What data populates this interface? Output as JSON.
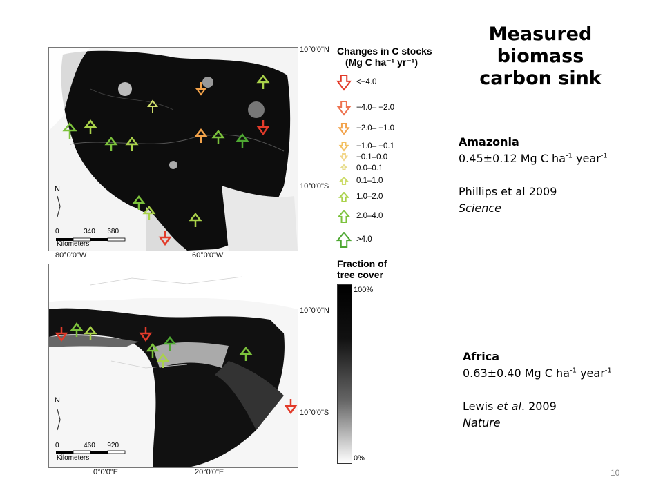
{
  "title": {
    "line1": "Measured",
    "line2": "biomass",
    "line3": "carbon sink"
  },
  "amazonia": {
    "heading": "Amazonia",
    "rate_prefix": "0.45±0.12 Mg C ha",
    "exp1": "-1",
    "mid": " year",
    "exp2": "-1",
    "citation": "Phillips et al 2009",
    "journal": "Science"
  },
  "africa": {
    "heading": "Africa",
    "rate_prefix": "0.63±0.40 Mg C ha",
    "exp1": "-1",
    "mid": " year",
    "exp2": "-1",
    "citation_author": "Lewis ",
    "citation_etal": "et al",
    "citation_year": ". 2009",
    "journal": "Nature"
  },
  "legend": {
    "title_line1": "Changes in C stocks",
    "title_line2": "(Mg C ha⁻¹ yr⁻¹)",
    "items": [
      {
        "label": "<−4.0",
        "color": "#e23b2a"
      },
      {
        "label": "−4.0– −2.0",
        "color": "#ee7350"
      },
      {
        "label": "−2.0– −1.0",
        "color": "#f2a24a"
      },
      {
        "label": "−1.0– −0.1",
        "color": "#f3c060"
      },
      {
        "label": "−0.1–0.0",
        "color": "#f2d68a"
      },
      {
        "label": "0.0–0.1",
        "color": "#e6dc8a"
      },
      {
        "label": "0.1–1.0",
        "color": "#cddc6a"
      },
      {
        "label": "1.0–2.0",
        "color": "#aad24a"
      },
      {
        "label": "2.0–4.0",
        "color": "#7cc23c"
      },
      {
        "label": ">4.0",
        "color": "#4ea832"
      }
    ],
    "cover_title_line1": "Fraction of",
    "cover_title_line2": "tree cover",
    "cover_max": "100%",
    "cover_min": "0%"
  },
  "amazon_map": {
    "lat_top": "10°0'0\"N",
    "lat_bottom": "10°0'0\"S",
    "lon_left": "80°0'0\"W",
    "lon_right": "60°0'0\"W",
    "north": "N",
    "scale": [
      "0",
      "340",
      "680"
    ],
    "scale_unit": "Kilometers"
  },
  "africa_map": {
    "lat_top": "10°0'0\"N",
    "lat_bottom": "10°0'0\"S",
    "lon_left": "0°0'0\"E",
    "lon_right": "20°0'0\"E",
    "north": "N",
    "scale": [
      "0",
      "460",
      "920"
    ],
    "scale_unit": "Kilometers"
  },
  "page_number": "10"
}
